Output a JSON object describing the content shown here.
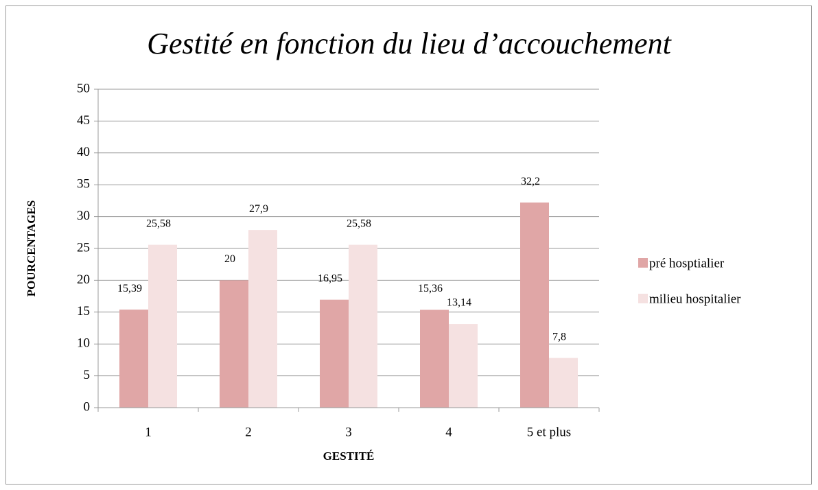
{
  "chart_data": {
    "type": "bar",
    "title": "Gestité en fonction du lieu d’accouchement",
    "x_label": "GESTITÉ",
    "y_label": "POURCENTAGES",
    "categories": [
      "1",
      "2",
      "3",
      "4",
      "5 et plus"
    ],
    "series": [
      {
        "name": "pré hosptialier",
        "color": "#e0a6a6",
        "values": [
          15.39,
          20,
          16.95,
          15.36,
          32.2
        ],
        "value_labels": [
          "15,39",
          "20",
          "16,95",
          "15,36",
          "32,2"
        ]
      },
      {
        "name": "milieu hospitalier",
        "color": "#f5e1e1",
        "values": [
          25.58,
          27.9,
          25.58,
          13.14,
          7.8
        ],
        "value_labels": [
          "25,58",
          "27,9",
          "25,58",
          "13,14",
          "7,8"
        ]
      }
    ],
    "ylim": [
      0,
      50
    ],
    "yticks": [
      0,
      5,
      10,
      15,
      20,
      25,
      30,
      35,
      40,
      45,
      50
    ],
    "grid": true,
    "legend": "right"
  }
}
